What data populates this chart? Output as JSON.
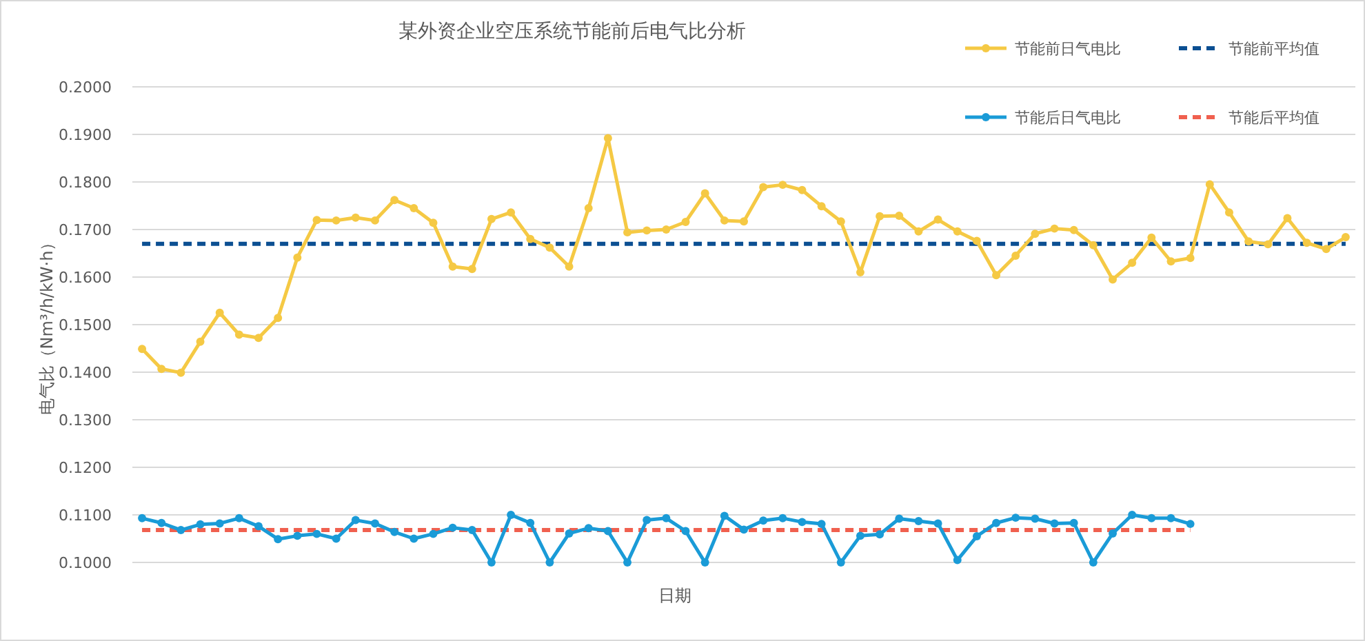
{
  "chart_data": {
    "type": "line",
    "title": "某外资企业空压系统节能前后电气比分析",
    "xlabel": "日期",
    "ylabel": "电气比（Nm³/h/kW·h）",
    "categories": [
      null,
      null,
      null,
      null,
      null,
      null,
      null,
      null,
      null,
      null,
      null,
      null,
      null,
      null,
      null,
      null,
      null,
      null,
      null,
      null,
      null,
      null,
      null,
      null,
      null,
      null,
      null,
      null,
      null,
      null,
      null,
      null,
      null,
      null,
      null,
      null,
      null,
      null,
      null,
      null,
      null,
      null,
      null,
      null,
      null,
      null,
      null,
      null,
      null,
      null,
      null,
      null,
      null,
      null,
      null,
      null,
      null,
      null,
      null,
      null,
      null,
      null,
      null
    ],
    "ylim": [
      0.1,
      0.2
    ],
    "yticks": [
      {
        "value": 0.1,
        "label": "0.1000"
      },
      {
        "value": 0.11,
        "label": "0.1100"
      },
      {
        "value": 0.12,
        "label": "0.1200"
      },
      {
        "value": 0.13,
        "label": "0.1300"
      },
      {
        "value": 0.14,
        "label": "0.1400"
      },
      {
        "value": 0.15,
        "label": "0.1500"
      },
      {
        "value": 0.16,
        "label": "0.1600"
      },
      {
        "value": 0.17,
        "label": "0.1700"
      },
      {
        "value": 0.18,
        "label": "0.1800"
      },
      {
        "value": 0.19,
        "label": "0.1900"
      },
      {
        "value": 0.2,
        "label": "0.2000"
      }
    ],
    "grid": "y",
    "legend": "top right",
    "marker": "circle",
    "line_style": "solid",
    "series": [
      {
        "name": "节能前日气电比",
        "color": "#f5c944",
        "values": [
          0.1449,
          0.1407,
          0.1399,
          0.1464,
          0.1525,
          0.1479,
          0.1472,
          0.1514,
          0.1641,
          0.172,
          0.1719,
          0.1725,
          0.1719,
          0.1762,
          0.1745,
          0.1714,
          0.1622,
          0.1617,
          0.1722,
          0.1736,
          0.168,
          0.1662,
          0.1622,
          0.1745,
          0.1892,
          0.1694,
          0.1698,
          0.17,
          0.1716,
          0.1776,
          0.1719,
          0.1717,
          0.1789,
          0.1794,
          0.1783,
          0.1749,
          0.1717,
          0.161,
          0.1728,
          0.1729,
          0.1696,
          0.1721,
          0.1696,
          0.1676,
          0.1604,
          0.1645,
          0.1691,
          0.1702,
          0.1699,
          0.1667,
          0.1595,
          0.163,
          0.1683,
          0.1633,
          0.164,
          0.1795,
          0.1736,
          0.1675,
          0.1669,
          0.1724,
          0.1672,
          0.1659,
          0.1684
        ]
      },
      {
        "name": "节能前平均值",
        "color": "#0b4f92",
        "marker": "none",
        "line_style": "dashed",
        "values": [
          0.167,
          0.167,
          0.167,
          0.167,
          0.167,
          0.167,
          0.167,
          0.167,
          0.167,
          0.167,
          0.167,
          0.167,
          0.167,
          0.167,
          0.167,
          0.167,
          0.167,
          0.167,
          0.167,
          0.167,
          0.167,
          0.167,
          0.167,
          0.167,
          0.167,
          0.167,
          0.167,
          0.167,
          0.167,
          0.167,
          0.167,
          0.167,
          0.167,
          0.167,
          0.167,
          0.167,
          0.167,
          0.167,
          0.167,
          0.167,
          0.167,
          0.167,
          0.167,
          0.167,
          0.167,
          0.167,
          0.167,
          0.167,
          0.167,
          0.167,
          0.167,
          0.167,
          0.167,
          0.167,
          0.167,
          0.167,
          0.167,
          0.167,
          0.167,
          0.167,
          0.167,
          0.167,
          0.167
        ]
      },
      {
        "name": "节能后日气电比",
        "color": "#1a9bd7",
        "values": [
          0.1093,
          0.1083,
          0.1068,
          0.108,
          0.1082,
          0.1093,
          0.1076,
          0.1049,
          0.1056,
          0.106,
          0.105,
          0.1089,
          0.1082,
          0.1064,
          0.105,
          0.106,
          0.1073,
          0.1068,
          0.1,
          0.11,
          0.1083,
          0.1,
          0.1061,
          0.1072,
          0.1066,
          0.1,
          0.1089,
          0.1093,
          0.1066,
          0.1,
          0.1098,
          0.1069,
          0.1088,
          0.1093,
          0.1085,
          0.1081,
          0.1,
          0.1056,
          0.1059,
          0.1092,
          0.1087,
          0.1082,
          0.1005,
          0.1055,
          0.1083,
          0.1094,
          0.1092,
          0.1082,
          0.1083,
          0.1,
          0.1061,
          0.11,
          0.1093,
          0.1093,
          0.1081,
          null,
          null,
          null,
          null,
          null,
          null,
          null,
          null
        ]
      },
      {
        "name": "节能后平均值",
        "color": "#f0604f",
        "marker": "none",
        "line_style": "dashed",
        "values": [
          0.1068,
          0.1068,
          0.1068,
          0.1068,
          0.1068,
          0.1068,
          0.1068,
          0.1068,
          0.1068,
          0.1068,
          0.1068,
          0.1068,
          0.1068,
          0.1068,
          0.1068,
          0.1068,
          0.1068,
          0.1068,
          0.1068,
          0.1068,
          0.1068,
          0.1068,
          0.1068,
          0.1068,
          0.1068,
          0.1068,
          0.1068,
          0.1068,
          0.1068,
          0.1068,
          0.1068,
          0.1068,
          0.1068,
          0.1068,
          0.1068,
          0.1068,
          0.1068,
          0.1068,
          0.1068,
          0.1068,
          0.1068,
          0.1068,
          0.1068,
          0.1068,
          0.1068,
          0.1068,
          0.1068,
          0.1068,
          0.1068,
          0.1068,
          0.1068,
          0.1068,
          0.1068,
          0.1068,
          0.1068,
          null,
          null,
          null,
          null,
          null,
          null,
          null,
          null
        ]
      }
    ]
  }
}
